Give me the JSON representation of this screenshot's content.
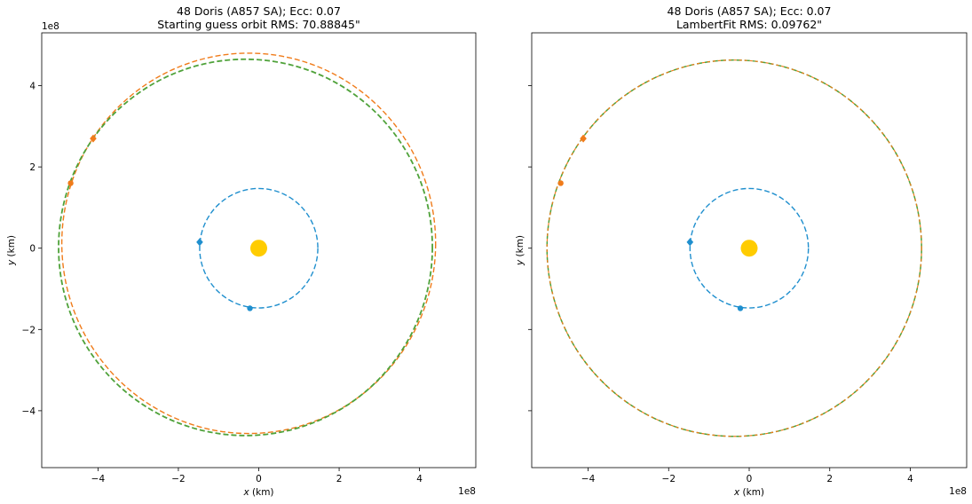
{
  "chart_data": [
    {
      "type": "line",
      "title": "48 Doris (A857 SA); Ecc: 0.07",
      "subtitle": "Starting guess orbit RMS: 70.88845\"",
      "xlabel": "x (km)",
      "ylabel": "y (km)",
      "xlabel_var": "x",
      "ylabel_var": "y",
      "axis_unit": " (km)",
      "x_offset_text": "1e8",
      "y_offset_text": "1e8",
      "xlim": [
        -5.4,
        5.4
      ],
      "ylim": [
        -5.4,
        5.3
      ],
      "xticks": [
        -4,
        -2,
        0,
        2,
        4
      ],
      "yticks": [
        -4,
        -2,
        0,
        2,
        4
      ],
      "xtick_labels": [
        "−4",
        "−2",
        "0",
        "2",
        "4"
      ],
      "ytick_labels": [
        "−4",
        "−2",
        "0",
        "2",
        "4"
      ],
      "show_ytick_labels": true,
      "grid": false,
      "sun": {
        "x": 0.0,
        "y": 0.0,
        "color": "#FFCC00"
      },
      "series": [
        {
          "kind": "ellipse",
          "color": "#1f8fce",
          "cx": 0.0,
          "cy": 0.0,
          "rx": 1.47,
          "ry": 1.47,
          "dash": "6,3",
          "width": 1.4
        },
        {
          "kind": "ellipse",
          "color": "#f07b1a",
          "cx": -0.25,
          "cy": 0.12,
          "rx": 4.65,
          "ry": 4.68,
          "dash": "6,3",
          "width": 1.4
        },
        {
          "kind": "ellipse",
          "color": "#4fa23a",
          "cx": -0.33,
          "cy": 0.02,
          "rx": 4.65,
          "ry": 4.63,
          "dash": "6,3",
          "width": 1.8
        }
      ],
      "markers": [
        {
          "x": -1.47,
          "y": 0.15,
          "shape": "diamond",
          "color": "#1f8fce"
        },
        {
          "x": -0.22,
          "y": -1.48,
          "shape": "circle",
          "color": "#1f8fce"
        },
        {
          "x": -4.12,
          "y": 2.7,
          "shape": "diamond",
          "color": "#f07b1a"
        },
        {
          "x": -4.68,
          "y": 1.6,
          "shape": "circle",
          "color": "#f07b1a"
        }
      ]
    },
    {
      "type": "line",
      "title": "48 Doris (A857 SA); Ecc: 0.07",
      "subtitle": "LambertFit RMS: 0.09762\"",
      "xlabel": "x (km)",
      "ylabel": "y (km)",
      "xlabel_var": "x",
      "ylabel_var": "y",
      "axis_unit": " (km)",
      "x_offset_text": "1e8",
      "y_offset_text": "",
      "xlim": [
        -5.4,
        5.4
      ],
      "ylim": [
        -5.4,
        5.3
      ],
      "xticks": [
        -4,
        -2,
        0,
        2,
        4
      ],
      "yticks": [
        -4,
        -2,
        0,
        2,
        4
      ],
      "xtick_labels": [
        "−4",
        "−2",
        "0",
        "2",
        "4"
      ],
      "ytick_labels": [],
      "show_ytick_labels": false,
      "grid": false,
      "sun": {
        "x": 0.0,
        "y": 0.0,
        "color": "#FFCC00"
      },
      "series": [
        {
          "kind": "ellipse",
          "color": "#1f8fce",
          "cx": 0.0,
          "cy": 0.0,
          "rx": 1.47,
          "ry": 1.47,
          "dash": "6,3",
          "width": 1.4
        },
        {
          "kind": "ellipse",
          "color": "#4fa23a",
          "cx": -0.37,
          "cy": 0.0,
          "rx": 4.65,
          "ry": 4.63,
          "dash": "6,3",
          "width": 1.5
        },
        {
          "kind": "ellipse",
          "color": "#f07b1a",
          "cx": -0.37,
          "cy": 0.0,
          "rx": 4.65,
          "ry": 4.63,
          "dash": "3,3",
          "width": 1.2
        }
      ],
      "markers": [
        {
          "x": -1.47,
          "y": 0.15,
          "shape": "diamond",
          "color": "#1f8fce"
        },
        {
          "x": -0.22,
          "y": -1.48,
          "shape": "circle",
          "color": "#1f8fce"
        },
        {
          "x": -4.12,
          "y": 2.7,
          "shape": "diamond",
          "color": "#f07b1a"
        },
        {
          "x": -4.68,
          "y": 1.6,
          "shape": "circle",
          "color": "#f07b1a"
        }
      ]
    }
  ]
}
